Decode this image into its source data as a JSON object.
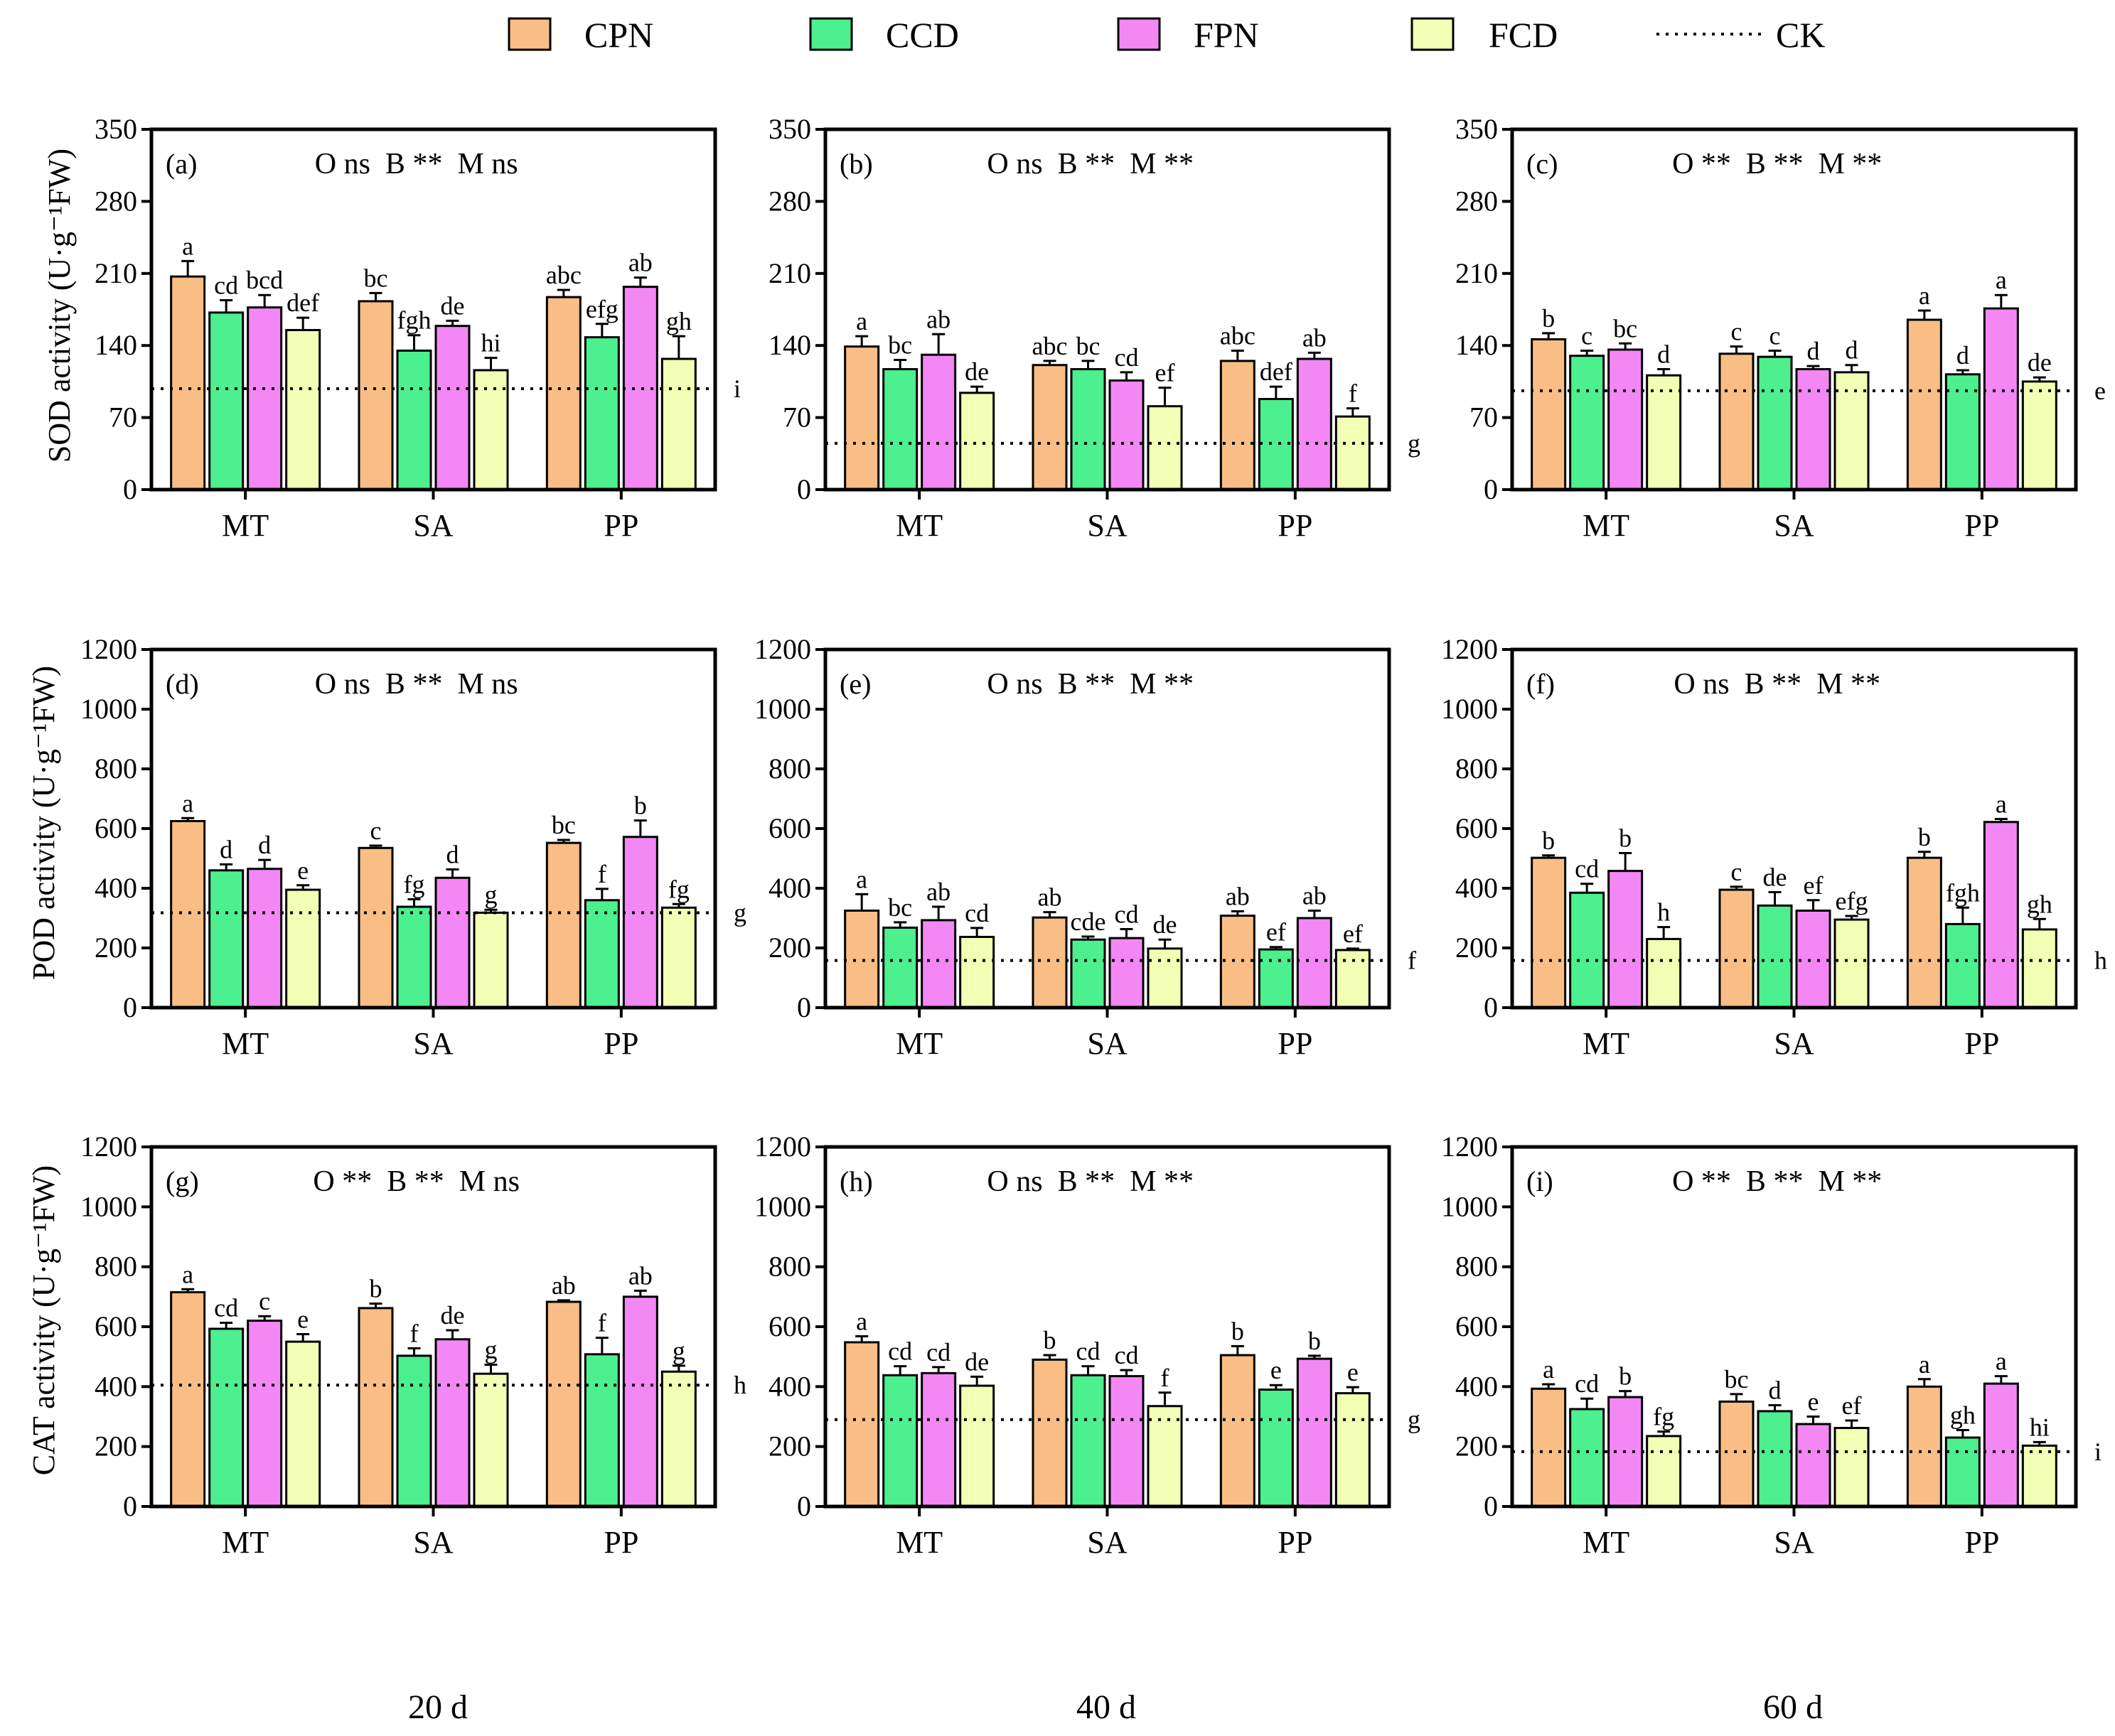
{
  "legend": {
    "items": [
      {
        "label": "CPN",
        "color": "#f9be85"
      },
      {
        "label": "CCD",
        "color": "#4cf08e"
      },
      {
        "label": "FPN",
        "color": "#f388f4"
      },
      {
        "label": "FCD",
        "color": "#f2ffb4"
      }
    ],
    "ck_label": "CK"
  },
  "y_titles": {
    "sod": "SOD activity (U·g⁻¹FW)",
    "pod": "POD activity (U·g⁻¹FW)",
    "cat": "CAT activity (U·g⁻¹FW)"
  },
  "columns": [
    "20 d",
    "40 d",
    "60 d"
  ],
  "chart_data": [
    {
      "type": "bar",
      "panel": "(a)",
      "significance": "O ns  B **  M ns",
      "ylim": [
        0,
        350
      ],
      "yticks": [
        0,
        70,
        140,
        210,
        280,
        350
      ],
      "categories": [
        "MT",
        "SA",
        "PP"
      ],
      "series": [
        {
          "name": "CPN",
          "values": [
            207,
            183,
            187
          ],
          "errors": [
            15,
            8,
            7
          ],
          "letters": [
            "a",
            "bc",
            "abc"
          ]
        },
        {
          "name": "CCD",
          "values": [
            172,
            135,
            148
          ],
          "errors": [
            12,
            15,
            13
          ],
          "letters": [
            "cd",
            "fgh",
            "efg"
          ]
        },
        {
          "name": "FPN",
          "values": [
            177,
            159,
            197
          ],
          "errors": [
            12,
            5,
            9
          ],
          "letters": [
            "bcd",
            "de",
            "ab"
          ]
        },
        {
          "name": "FCD",
          "values": [
            155,
            116,
            127
          ],
          "errors": [
            12,
            12,
            22
          ],
          "letters": [
            "def",
            "hi",
            "gh"
          ]
        }
      ],
      "ck": {
        "value": 98,
        "letter": "i"
      }
    },
    {
      "type": "bar",
      "panel": "(b)",
      "significance": "O ns  B **  M **",
      "ylim": [
        0,
        350
      ],
      "yticks": [
        0,
        70,
        140,
        210,
        280,
        350
      ],
      "categories": [
        "MT",
        "SA",
        "PP"
      ],
      "series": [
        {
          "name": "CPN",
          "values": [
            139,
            121,
            125
          ],
          "errors": [
            10,
            4,
            10
          ],
          "letters": [
            "a",
            "abc",
            "abc"
          ]
        },
        {
          "name": "CCD",
          "values": [
            117,
            117,
            88
          ],
          "errors": [
            9,
            8,
            12
          ],
          "letters": [
            "bc",
            "bc",
            "def"
          ]
        },
        {
          "name": "FPN",
          "values": [
            131,
            106,
            127
          ],
          "errors": [
            20,
            8,
            6
          ],
          "letters": [
            "ab",
            "cd",
            "ab"
          ]
        },
        {
          "name": "FCD",
          "values": [
            94,
            81,
            71
          ],
          "errors": [
            6,
            18,
            8
          ],
          "letters": [
            "de",
            "ef",
            "f"
          ]
        }
      ],
      "ck": {
        "value": 45,
        "letter": "g"
      }
    },
    {
      "type": "bar",
      "panel": "(c)",
      "significance": "O **  B **  M **",
      "ylim": [
        0,
        350
      ],
      "yticks": [
        0,
        70,
        140,
        210,
        280,
        350
      ],
      "categories": [
        "MT",
        "SA",
        "PP"
      ],
      "series": [
        {
          "name": "CPN",
          "values": [
            146,
            132,
            165
          ],
          "errors": [
            6,
            7,
            9
          ],
          "letters": [
            "b",
            "c",
            "a"
          ]
        },
        {
          "name": "CCD",
          "values": [
            130,
            129,
            112
          ],
          "errors": [
            5,
            6,
            4
          ],
          "letters": [
            "c",
            "c",
            "d"
          ]
        },
        {
          "name": "FPN",
          "values": [
            136,
            117,
            176
          ],
          "errors": [
            6,
            3,
            13
          ],
          "letters": [
            "bc",
            "d",
            "a"
          ]
        },
        {
          "name": "FCD",
          "values": [
            111,
            114,
            105
          ],
          "errors": [
            6,
            7,
            4
          ],
          "letters": [
            "d",
            "d",
            "de"
          ]
        }
      ],
      "ck": {
        "value": 96,
        "letter": "e"
      }
    },
    {
      "type": "bar",
      "panel": "(d)",
      "significance": "O ns  B **  M ns",
      "ylim": [
        0,
        1200
      ],
      "yticks": [
        0,
        200,
        400,
        600,
        800,
        1000,
        1200
      ],
      "categories": [
        "MT",
        "SA",
        "PP"
      ],
      "series": [
        {
          "name": "CPN",
          "values": [
            625,
            535,
            552
          ],
          "errors": [
            10,
            8,
            10
          ],
          "letters": [
            "a",
            "c",
            "bc"
          ]
        },
        {
          "name": "CCD",
          "values": [
            460,
            338,
            360
          ],
          "errors": [
            20,
            25,
            38
          ],
          "letters": [
            "d",
            "fg",
            "f"
          ]
        },
        {
          "name": "FPN",
          "values": [
            465,
            435,
            572
          ],
          "errors": [
            30,
            28,
            55
          ],
          "letters": [
            "d",
            "d",
            "b"
          ]
        },
        {
          "name": "FCD",
          "values": [
            395,
            318,
            335
          ],
          "errors": [
            15,
            10,
            12
          ],
          "letters": [
            "e",
            "g",
            "fg"
          ]
        }
      ],
      "ck": {
        "value": 318,
        "letter": "g"
      }
    },
    {
      "type": "bar",
      "panel": "(e)",
      "significance": "O ns  B **  M **",
      "ylim": [
        0,
        1200
      ],
      "yticks": [
        0,
        200,
        400,
        600,
        800,
        1000,
        1200
      ],
      "categories": [
        "MT",
        "SA",
        "PP"
      ],
      "series": [
        {
          "name": "CPN",
          "values": [
            325,
            302,
            308
          ],
          "errors": [
            55,
            18,
            15
          ],
          "letters": [
            "a",
            "ab",
            "ab"
          ]
        },
        {
          "name": "CCD",
          "values": [
            268,
            228,
            195
          ],
          "errors": [
            18,
            10,
            8
          ],
          "letters": [
            "bc",
            "cde",
            "ef"
          ]
        },
        {
          "name": "FPN",
          "values": [
            293,
            233,
            300
          ],
          "errors": [
            45,
            30,
            25
          ],
          "letters": [
            "ab",
            "cd",
            "ab"
          ]
        },
        {
          "name": "FCD",
          "values": [
            237,
            198,
            193
          ],
          "errors": [
            30,
            30,
            5
          ],
          "letters": [
            "cd",
            "de",
            "ef"
          ]
        }
      ],
      "ck": {
        "value": 158,
        "letter": "f"
      }
    },
    {
      "type": "bar",
      "panel": "(f)",
      "significance": "O ns  B **  M **",
      "ylim": [
        0,
        1200
      ],
      "yticks": [
        0,
        200,
        400,
        600,
        800,
        1000,
        1200
      ],
      "categories": [
        "MT",
        "SA",
        "PP"
      ],
      "series": [
        {
          "name": "CPN",
          "values": [
            502,
            395,
            502
          ],
          "errors": [
            8,
            10,
            20
          ],
          "letters": [
            "b",
            "c",
            "b"
          ]
        },
        {
          "name": "CCD",
          "values": [
            385,
            342,
            280
          ],
          "errors": [
            30,
            45,
            55
          ],
          "letters": [
            "cd",
            "de",
            "fgh"
          ]
        },
        {
          "name": "FPN",
          "values": [
            458,
            325,
            622
          ],
          "errors": [
            60,
            35,
            10
          ],
          "letters": [
            "b",
            "ef",
            "a"
          ]
        },
        {
          "name": "FCD",
          "values": [
            230,
            295,
            262
          ],
          "errors": [
            40,
            12,
            35
          ],
          "letters": [
            "h",
            "efg",
            "gh"
          ]
        }
      ],
      "ck": {
        "value": 158,
        "letter": "h"
      }
    },
    {
      "type": "bar",
      "panel": "(g)",
      "significance": "O **  B **  M ns",
      "ylim": [
        0,
        1200
      ],
      "yticks": [
        0,
        200,
        400,
        600,
        800,
        1000,
        1200
      ],
      "categories": [
        "MT",
        "SA",
        "PP"
      ],
      "series": [
        {
          "name": "CPN",
          "values": [
            715,
            662,
            683
          ],
          "errors": [
            10,
            15,
            5
          ],
          "letters": [
            "a",
            "b",
            "ab"
          ]
        },
        {
          "name": "CCD",
          "values": [
            593,
            503,
            508
          ],
          "errors": [
            20,
            25,
            55
          ],
          "letters": [
            "cd",
            "f",
            "f"
          ]
        },
        {
          "name": "FPN",
          "values": [
            620,
            558,
            700
          ],
          "errors": [
            15,
            30,
            20
          ],
          "letters": [
            "c",
            "de",
            "ab"
          ]
        },
        {
          "name": "FCD",
          "values": [
            550,
            443,
            450
          ],
          "errors": [
            25,
            30,
            20
          ],
          "letters": [
            "e",
            "g",
            "g"
          ]
        }
      ],
      "ck": {
        "value": 405,
        "letter": "h"
      }
    },
    {
      "type": "bar",
      "panel": "(h)",
      "significance": "O ns  B **  M **",
      "ylim": [
        0,
        1200
      ],
      "yticks": [
        0,
        200,
        400,
        600,
        800,
        1000,
        1200
      ],
      "categories": [
        "MT",
        "SA",
        "PP"
      ],
      "series": [
        {
          "name": "CPN",
          "values": [
            548,
            490,
            505
          ],
          "errors": [
            20,
            15,
            30
          ],
          "letters": [
            "a",
            "b",
            "b"
          ]
        },
        {
          "name": "CCD",
          "values": [
            438,
            438,
            390
          ],
          "errors": [
            30,
            30,
            15
          ],
          "letters": [
            "cd",
            "cd",
            "e"
          ]
        },
        {
          "name": "FPN",
          "values": [
            445,
            435,
            493
          ],
          "errors": [
            20,
            20,
            10
          ],
          "letters": [
            "cd",
            "cd",
            "b"
          ]
        },
        {
          "name": "FCD",
          "values": [
            403,
            335,
            378
          ],
          "errors": [
            30,
            45,
            20
          ],
          "letters": [
            "de",
            "f",
            "e"
          ]
        }
      ],
      "ck": {
        "value": 290,
        "letter": "g"
      }
    },
    {
      "type": "bar",
      "panel": "(i)",
      "significance": "O **  B **  M **",
      "ylim": [
        0,
        1200
      ],
      "yticks": [
        0,
        200,
        400,
        600,
        800,
        1000,
        1200
      ],
      "categories": [
        "MT",
        "SA",
        "PP"
      ],
      "series": [
        {
          "name": "CPN",
          "values": [
            393,
            350,
            400
          ],
          "errors": [
            15,
            25,
            25
          ],
          "letters": [
            "a",
            "bc",
            "a"
          ]
        },
        {
          "name": "CCD",
          "values": [
            325,
            318,
            230
          ],
          "errors": [
            35,
            20,
            25
          ],
          "letters": [
            "cd",
            "d",
            "gh"
          ]
        },
        {
          "name": "FPN",
          "values": [
            365,
            275,
            410
          ],
          "errors": [
            20,
            25,
            25
          ],
          "letters": [
            "b",
            "e",
            "a"
          ]
        },
        {
          "name": "FCD",
          "values": [
            235,
            262,
            203
          ],
          "errors": [
            15,
            25,
            12
          ],
          "letters": [
            "fg",
            "ef",
            "hi"
          ]
        }
      ],
      "ck": {
        "value": 183,
        "letter": "i"
      }
    }
  ]
}
